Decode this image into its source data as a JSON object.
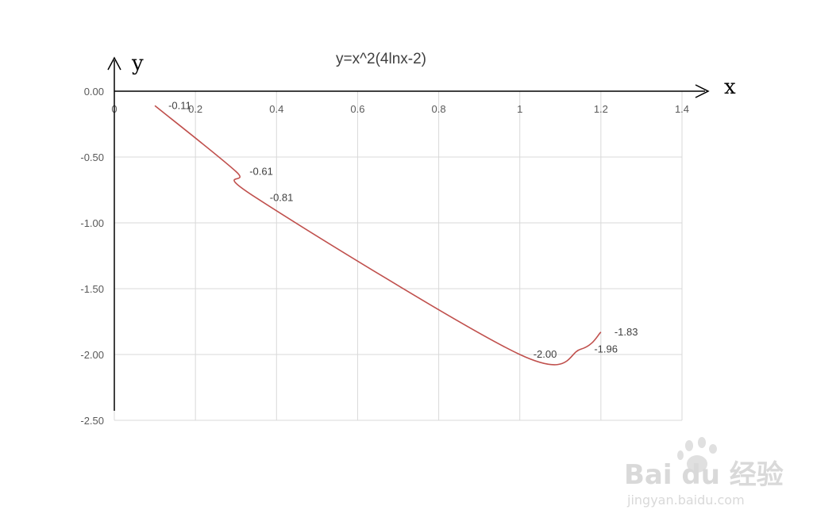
{
  "chart_data": {
    "type": "line",
    "title": "y=x^2(4lnx-2)",
    "xlabel": "x",
    "ylabel": "y",
    "xlim": [
      0,
      1.4
    ],
    "ylim": [
      -2.5,
      0
    ],
    "x_ticks": [
      "0",
      "0.2",
      "0.4",
      "0.6",
      "0.8",
      "1",
      "1.2",
      "1.4"
    ],
    "y_ticks": [
      "0.00",
      "-0.50",
      "-1.00",
      "-1.50",
      "-2.00",
      "-2.50"
    ],
    "grid": true,
    "series": [
      {
        "color": "#c0504d",
        "points": [
          {
            "x": 0.1,
            "y": -0.11
          },
          {
            "x": 0.3,
            "y": -0.61
          },
          {
            "x": 0.35,
            "y": -0.81
          },
          {
            "x": 1.0,
            "y": -2.0
          },
          {
            "x": 1.15,
            "y": -1.96
          },
          {
            "x": 1.2,
            "y": -1.83
          }
        ]
      }
    ],
    "data_labels": [
      "-0.11",
      "-0.61",
      "-0.81",
      "-2.00",
      "-1.96",
      "-1.83"
    ]
  },
  "watermark": {
    "brand": "Bai du 经验",
    "url": "jingyan.baidu.com"
  }
}
